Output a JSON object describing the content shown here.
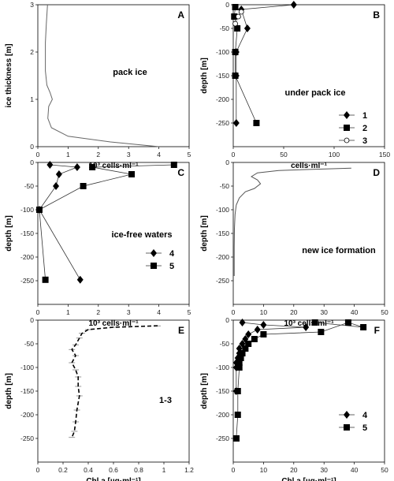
{
  "chart_data": [
    {
      "panel": "A",
      "type": "line",
      "xlabel": "10³ cells·ml⁻¹",
      "ylabel": "ice thickness [m]",
      "xlim": [
        0,
        5
      ],
      "ylim": [
        0,
        3
      ],
      "xticks": [
        0,
        1,
        2,
        3,
        4,
        5
      ],
      "yticks": [
        0,
        1,
        2,
        3
      ],
      "note": "pack ice",
      "y_inverted": false,
      "series": [
        {
          "style": "line",
          "color": "#666666",
          "x": [
            4.0,
            2.4,
            1.0,
            0.45,
            0.33,
            0.36,
            0.48,
            0.4,
            0.3,
            0.25,
            0.25,
            0.25,
            0.28,
            0.32
          ],
          "y": [
            0.0,
            0.1,
            0.22,
            0.4,
            0.6,
            0.85,
            1.0,
            1.15,
            1.3,
            1.6,
            1.9,
            2.2,
            2.6,
            3.0
          ]
        }
      ]
    },
    {
      "panel": "B",
      "type": "line",
      "xlabel": "cells·ml⁻¹",
      "ylabel": "depth [m]",
      "xlim": [
        0,
        150
      ],
      "ylim": [
        -300,
        0
      ],
      "xticks": [
        0,
        50,
        100,
        150
      ],
      "yticks": [
        0,
        -50,
        -100,
        -150,
        -200,
        -250
      ],
      "note": "under pack ice",
      "y_inverted": false,
      "legend": [
        "1",
        "2",
        "3"
      ],
      "series": [
        {
          "name": "1",
          "marker": "diamond",
          "x": [
            60,
            8,
            14,
            3,
            3,
            3
          ],
          "y": [
            0,
            -10,
            -50,
            -100,
            -150,
            -250
          ]
        },
        {
          "name": "2",
          "marker": "square",
          "x": [
            2,
            1,
            4,
            2,
            2,
            23
          ],
          "y": [
            -5,
            -25,
            -50,
            -100,
            -150,
            -250
          ]
        },
        {
          "name": "3",
          "marker": "circle",
          "x": [
            8,
            5,
            2
          ],
          "y": [
            -15,
            -25,
            -40
          ]
        }
      ]
    },
    {
      "panel": "C",
      "type": "line",
      "xlabel": "10³ cells·ml⁻¹",
      "ylabel": "depth [m]",
      "xlim": [
        0,
        5
      ],
      "ylim": [
        -300,
        0
      ],
      "xticks": [
        0,
        1,
        2,
        3,
        4,
        5
      ],
      "yticks": [
        0,
        -50,
        -100,
        -150,
        -200,
        -250
      ],
      "note": "ice-free waters",
      "y_inverted": false,
      "legend": [
        "4",
        "5"
      ],
      "series": [
        {
          "name": "4",
          "marker": "diamond",
          "x": [
            0.4,
            1.3,
            0.7,
            0.6,
            0.05,
            1.4
          ],
          "y": [
            -5,
            -10,
            -25,
            -50,
            -100,
            -248
          ]
        },
        {
          "name": "5",
          "marker": "square",
          "x": [
            4.5,
            1.8,
            3.1,
            1.5,
            0.05,
            0.25
          ],
          "y": [
            -5,
            -10,
            -25,
            -50,
            -100,
            -248
          ]
        }
      ]
    },
    {
      "panel": "D",
      "type": "line",
      "xlabel": "10³ cells·ml⁻¹",
      "ylabel": "depth [m]",
      "xlim": [
        0,
        50
      ],
      "ylim": [
        -300,
        0
      ],
      "xticks": [
        0,
        10,
        20,
        30,
        40,
        50
      ],
      "yticks": [
        0,
        -50,
        -100,
        -150,
        -200,
        -250
      ],
      "note": "new ice formation",
      "y_inverted": false,
      "series": [
        {
          "style": "line",
          "color": "#555555",
          "x": [
            39,
            15,
            8,
            6,
            8,
            9,
            7,
            4,
            2,
            1,
            0.6,
            0.4,
            0.3,
            0.3
          ],
          "y": [
            -12,
            -17,
            -22,
            -30,
            -37,
            -45,
            -55,
            -62,
            -75,
            -90,
            -110,
            -140,
            -180,
            -240
          ]
        }
      ]
    },
    {
      "panel": "E",
      "type": "line",
      "xlabel": "Chl a [µg·ml⁻¹]",
      "ylabel": "depth [m]",
      "xlim": [
        0,
        1.2
      ],
      "ylim": [
        -300,
        0
      ],
      "xticks": [
        0,
        0.2,
        0.4,
        0.6,
        0.8,
        1.0,
        1.2
      ],
      "yticks": [
        0,
        -50,
        -100,
        -150,
        -200,
        -250
      ],
      "note": "1-3",
      "y_inverted": false,
      "series": [
        {
          "style": "dashed-errorbar",
          "color": "#000000",
          "x": [
            0.95,
            0.6,
            0.4,
            0.35,
            0.33,
            0.3,
            0.27,
            0.3,
            0.27,
            0.3,
            0.32,
            0.32,
            0.33,
            0.31,
            0.3,
            0.29,
            0.27
          ],
          "y": [
            -12,
            -15,
            -20,
            -28,
            -38,
            -52,
            -62,
            -75,
            -90,
            -105,
            -120,
            -140,
            -160,
            -190,
            -215,
            -235,
            -248
          ]
        }
      ]
    },
    {
      "panel": "F",
      "type": "line",
      "xlabel": "Chl a [µg·ml⁻¹]",
      "ylabel": "depth [m]",
      "xlim": [
        0,
        50
      ],
      "ylim": [
        -300,
        0
      ],
      "xticks": [
        0,
        10,
        20,
        30,
        40,
        50
      ],
      "yticks": [
        0,
        -50,
        -100,
        -150,
        -200,
        -250
      ],
      "y_inverted": false,
      "legend": [
        "4",
        "5"
      ],
      "series": [
        {
          "name": "4",
          "marker": "diamond",
          "x": [
            3,
            10,
            24,
            8,
            5,
            4,
            3,
            2,
            2,
            1.5,
            1,
            1,
            1
          ],
          "y": [
            -5,
            -10,
            -15,
            -20,
            -30,
            -40,
            -50,
            -60,
            -70,
            -80,
            -90,
            -100,
            -150
          ]
        },
        {
          "name": "5",
          "marker": "square",
          "x": [
            27,
            43,
            38,
            29,
            10,
            7,
            5,
            4,
            3,
            2.5,
            2,
            2,
            1.5,
            1.5,
            1,
            1
          ],
          "y": [
            -5,
            -15,
            -5,
            -25,
            -30,
            -40,
            -50,
            -60,
            -70,
            -80,
            -90,
            -100,
            -150,
            -200,
            -250,
            -250
          ]
        }
      ]
    }
  ]
}
